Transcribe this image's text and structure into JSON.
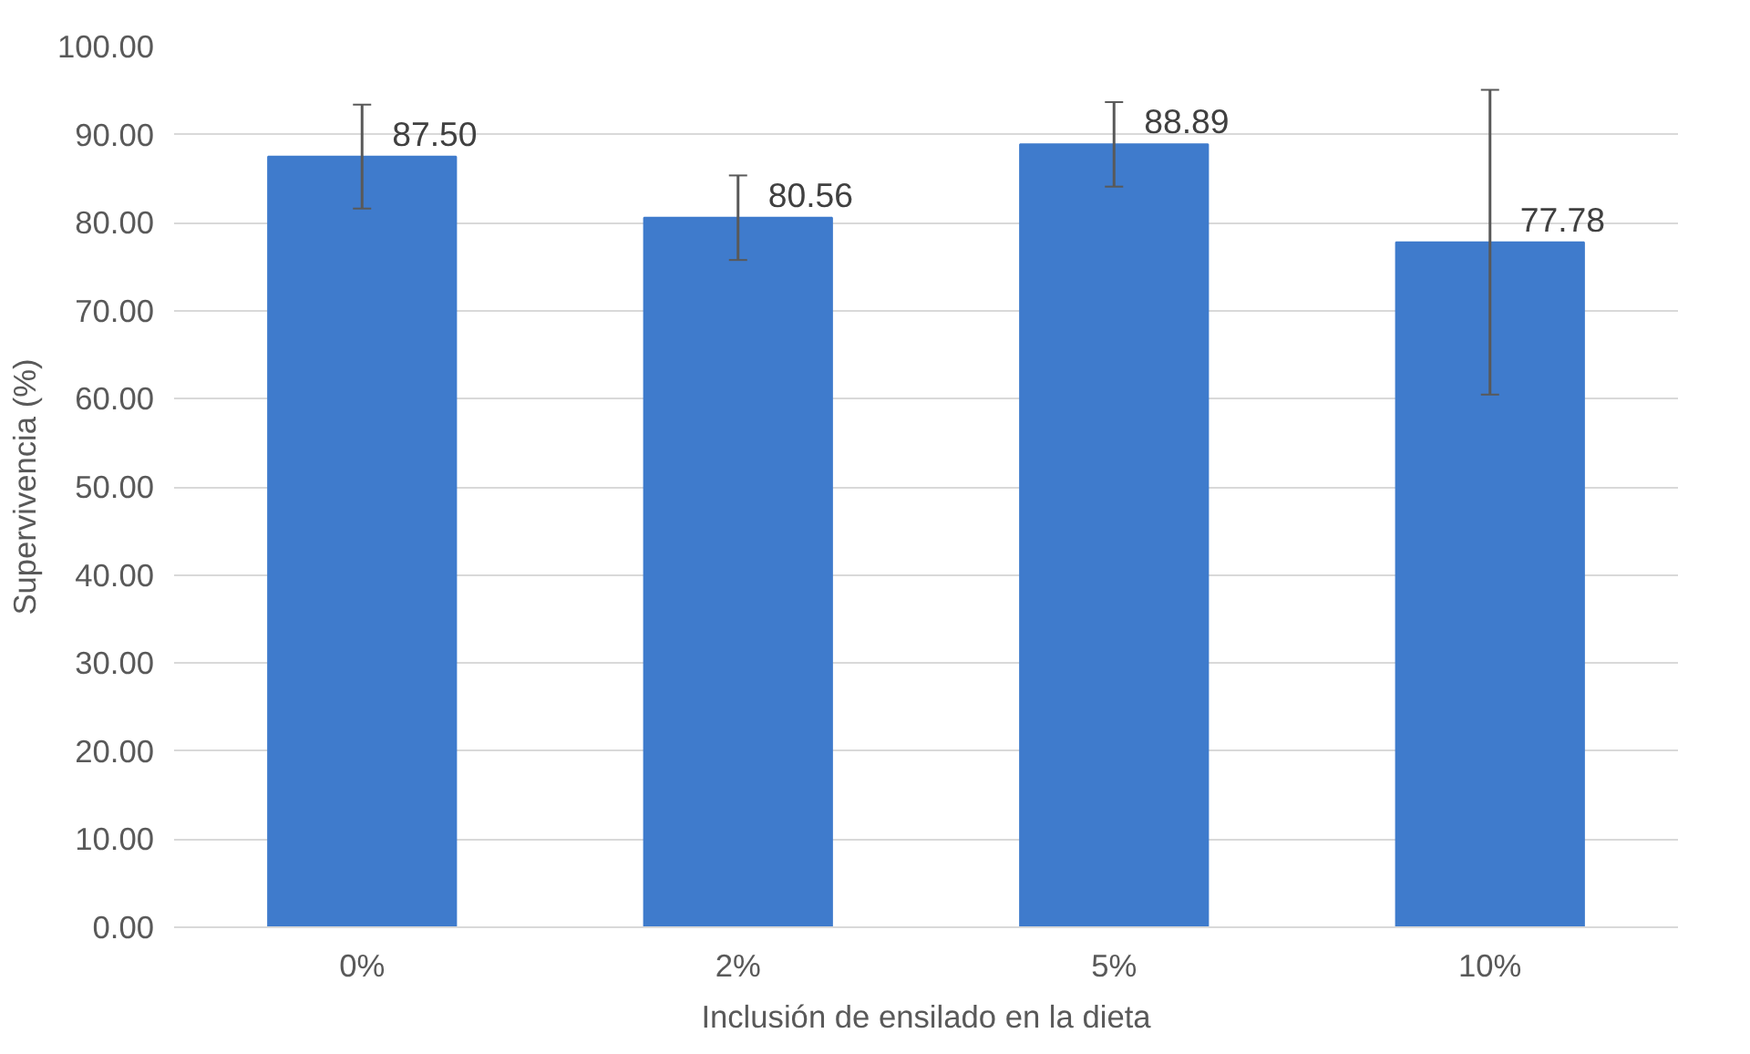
{
  "chart_data": {
    "type": "bar",
    "xlabel": "Inclusión de ensilado en la dieta",
    "ylabel": "Supervivencia (%)",
    "categories": [
      "0%",
      "2%",
      "5%",
      "10%"
    ],
    "values": [
      87.5,
      80.56,
      88.89,
      77.78
    ],
    "value_labels": [
      "87.50",
      "80.56",
      "88.89",
      "77.78"
    ],
    "errors": [
      5.9,
      4.8,
      4.8,
      17.3
    ],
    "color": "#3f7bcc",
    "ylim": [
      0,
      100
    ],
    "yticks": [
      {
        "value": 0,
        "label": "0.00"
      },
      {
        "value": 10,
        "label": "10.00"
      },
      {
        "value": 20,
        "label": "20.00"
      },
      {
        "value": 30,
        "label": "30.00"
      },
      {
        "value": 40,
        "label": "40.00"
      },
      {
        "value": 50,
        "label": "50.00"
      },
      {
        "value": 60,
        "label": "60.00"
      },
      {
        "value": 70,
        "label": "70.00"
      },
      {
        "value": 80,
        "label": "80.00"
      },
      {
        "value": 90,
        "label": "90.00"
      },
      {
        "value": 100,
        "label": "100.00"
      }
    ],
    "grid": "y"
  }
}
